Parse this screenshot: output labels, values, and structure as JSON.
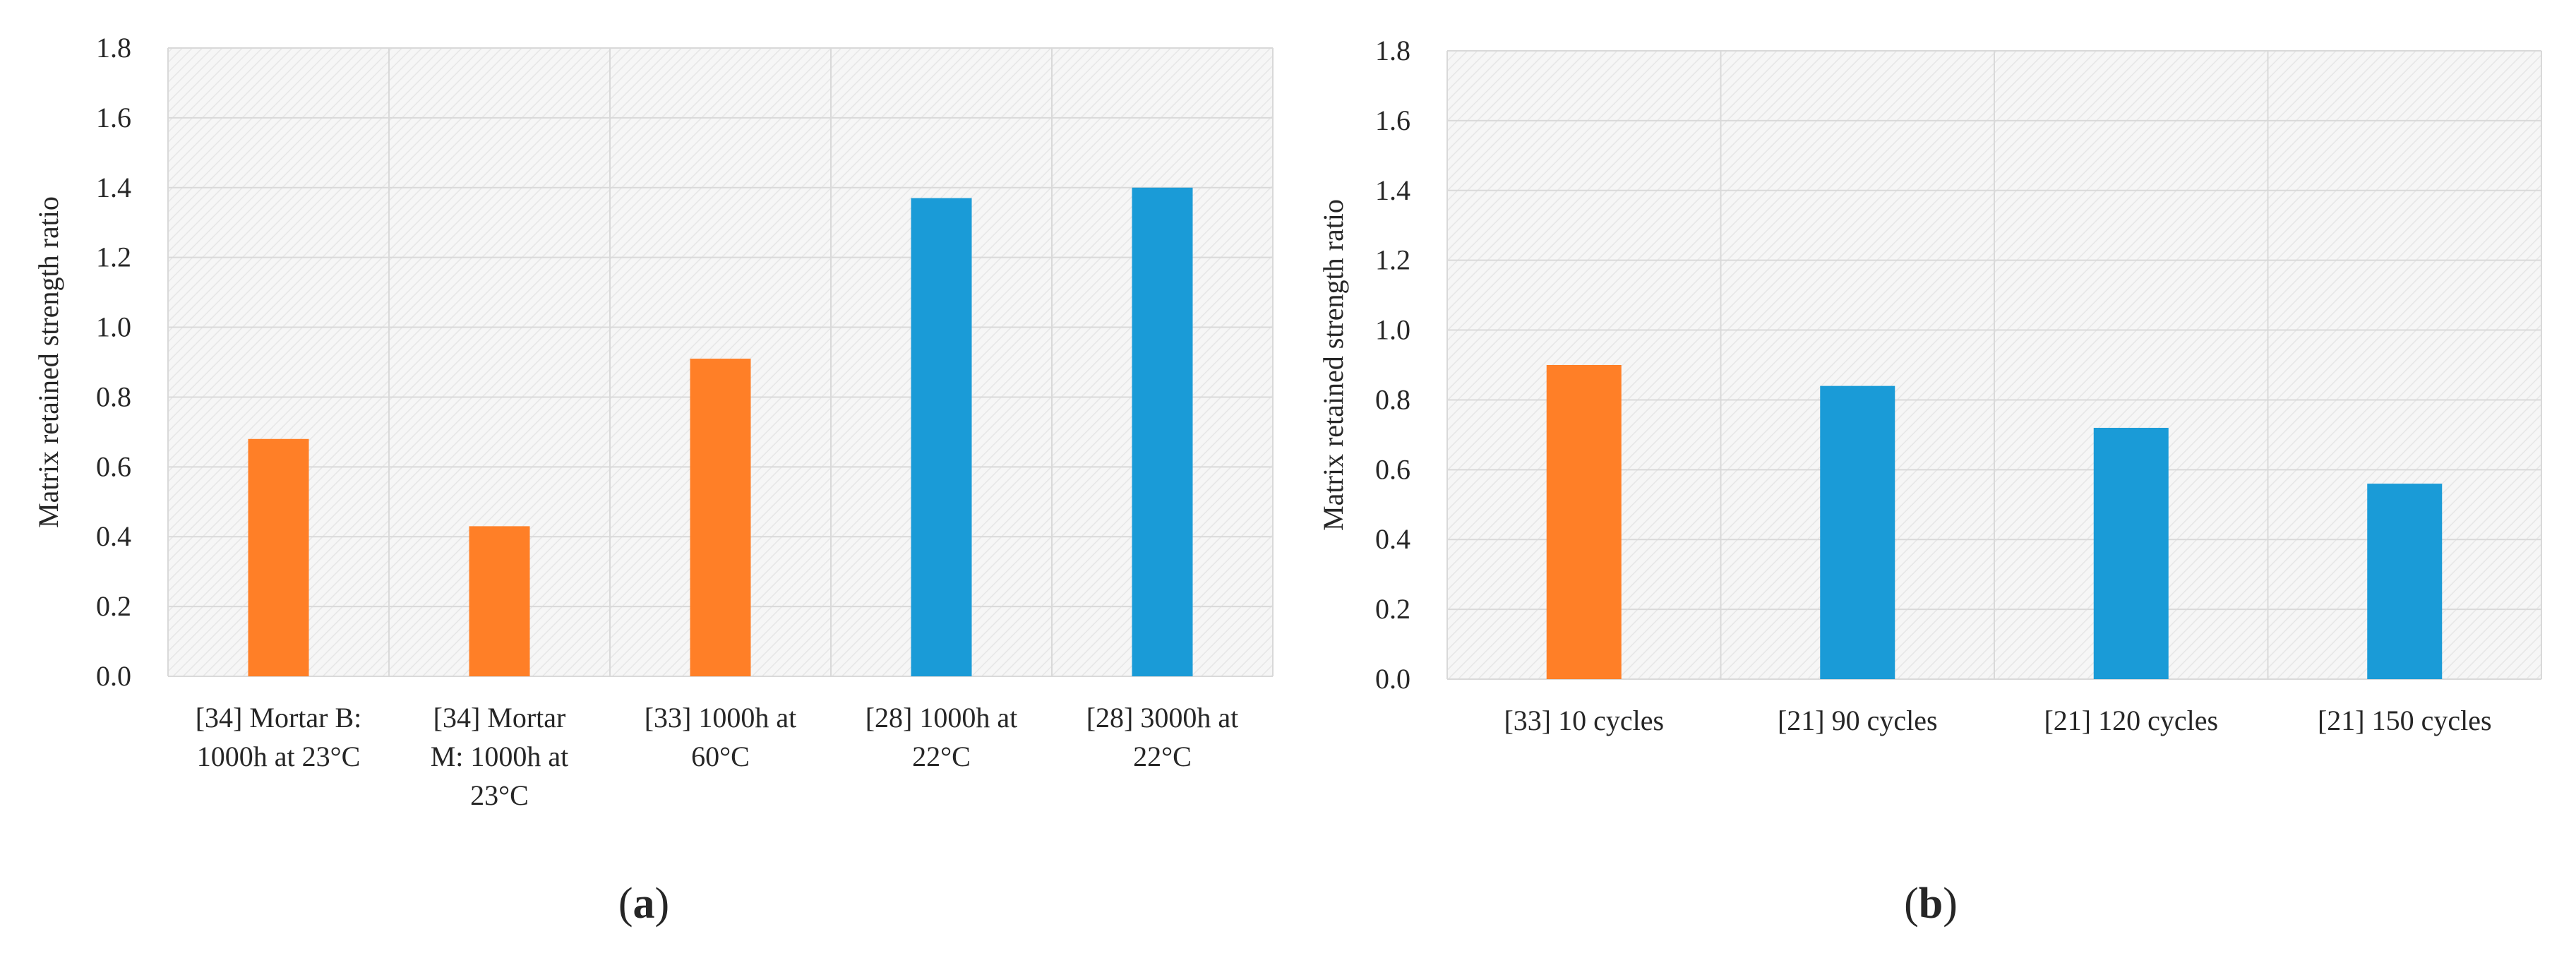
{
  "chart_data": [
    {
      "type": "bar",
      "panel_label": "a",
      "title": "",
      "xlabel": "",
      "ylabel": "Matrix retained strength ratio",
      "ylim": [
        0,
        1.8
      ],
      "yticks": [
        "0.0",
        "0.2",
        "0.4",
        "0.6",
        "0.8",
        "1.0",
        "1.2",
        "1.4",
        "1.6",
        "1.8"
      ],
      "grid": true,
      "categories": [
        [
          "[34] Mortar B:",
          "1000h at 23°C"
        ],
        [
          "[34] Mortar",
          "M: 1000h at",
          "23°C"
        ],
        [
          "[33] 1000h at",
          "60°C"
        ],
        [
          "[28] 1000h at",
          "22°C"
        ],
        [
          "[28] 3000h at",
          "22°C"
        ]
      ],
      "values": [
        0.68,
        0.43,
        0.91,
        1.37,
        1.4
      ],
      "colors": [
        "#FF7F27",
        "#FF7F27",
        "#FF7F27",
        "#1A9BD7",
        "#1A9BD7"
      ]
    },
    {
      "type": "bar",
      "panel_label": "b",
      "title": "",
      "xlabel": "",
      "ylabel": "Matrix retained strength ratio",
      "ylim": [
        0,
        1.8
      ],
      "yticks": [
        "0.0",
        "0.2",
        "0.4",
        "0.6",
        "0.8",
        "1.0",
        "1.2",
        "1.4",
        "1.6",
        "1.8"
      ],
      "grid": true,
      "categories": [
        [
          "[33] 10 cycles"
        ],
        [
          "[21] 90 cycles"
        ],
        [
          "[21] 120 cycles"
        ],
        [
          "[21] 150 cycles"
        ]
      ],
      "values": [
        0.9,
        0.84,
        0.72,
        0.56
      ],
      "colors": [
        "#FF7F27",
        "#1A9BD7",
        "#1A9BD7",
        "#1A9BD7"
      ]
    }
  ]
}
